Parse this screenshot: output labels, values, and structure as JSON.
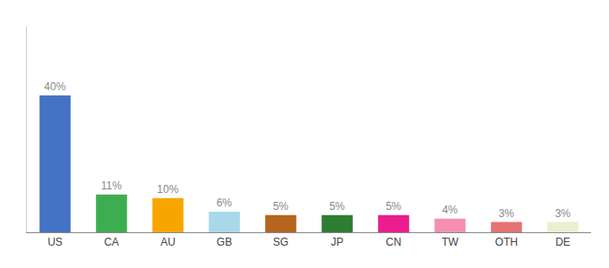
{
  "chart_data": {
    "type": "bar",
    "categories": [
      "US",
      "CA",
      "AU",
      "GB",
      "SG",
      "JP",
      "CN",
      "TW",
      "OTH",
      "DE"
    ],
    "values": [
      40,
      11,
      10,
      6,
      5,
      5,
      5,
      4,
      3,
      3
    ],
    "value_labels": [
      "40%",
      "11%",
      "10%",
      "6%",
      "5%",
      "5%",
      "5%",
      "4%",
      "3%",
      "3%"
    ],
    "colors": [
      "#4472c4",
      "#3dae4f",
      "#f7a600",
      "#a8d8ea",
      "#b5651d",
      "#2e7d32",
      "#e91e8c",
      "#f48fb1",
      "#e57373",
      "#e8f0d0"
    ],
    "ylim": [
      0,
      60
    ],
    "grid": false,
    "data_labels": true,
    "tick_labels": "x"
  }
}
